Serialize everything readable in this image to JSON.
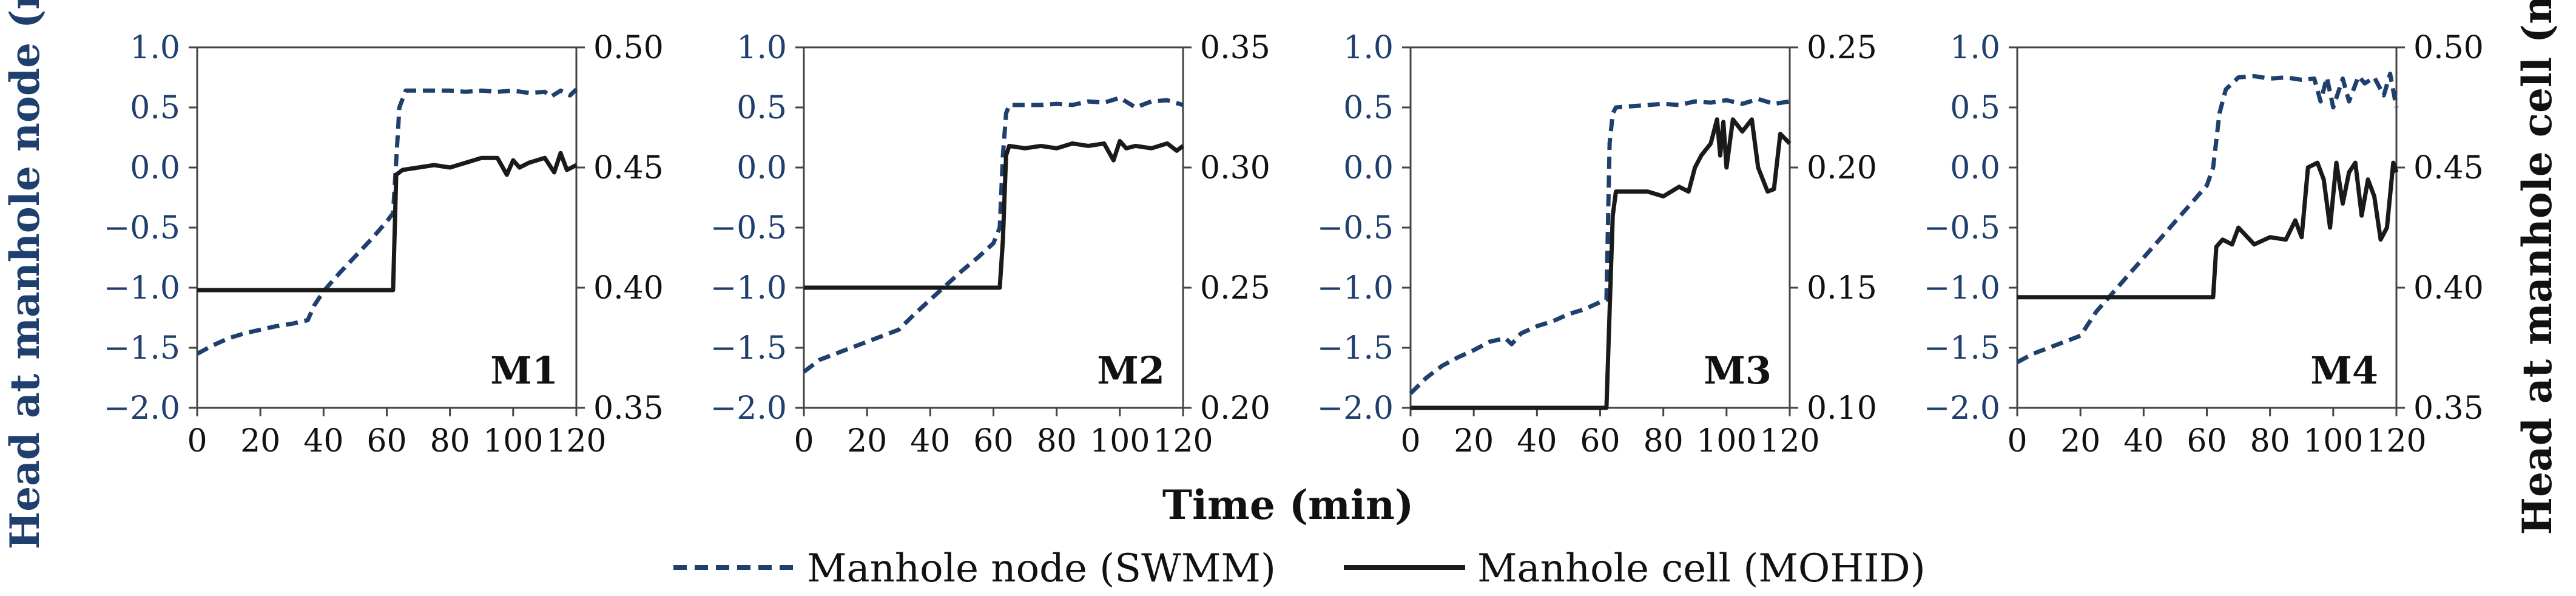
{
  "chart_data": {
    "type": "line",
    "xlabel": "Time (min)",
    "ylabel_left": "Head at manhole node (m)",
    "ylabel_right": "Head at manhole cell (m)",
    "colors": {
      "swmm": "#1f3f6e",
      "mohid": "#1a1a1a",
      "left_axis_text": "#1f3f6e"
    },
    "legend": [
      {
        "name": "Manhole node (SWMM)",
        "style": "dashed",
        "color": "#1f3f6e"
      },
      {
        "name": "Manhole cell (MOHID)",
        "style": "solid",
        "color": "#1a1a1a"
      }
    ],
    "panels": [
      {
        "label": "M1",
        "xlim": [
          0,
          120
        ],
        "xticks": [
          "0",
          "20",
          "40",
          "60",
          "80",
          "100",
          "120"
        ],
        "ylim_left": [
          -2.0,
          1.0
        ],
        "yticks_left": [
          "-2.0",
          "-1.5",
          "-1.0",
          "-0.5",
          "0.0",
          "0.5",
          "1.0"
        ],
        "ylim_right": [
          0.35,
          0.5
        ],
        "yticks_right": [
          "0.35",
          "0.40",
          "0.45",
          "0.50"
        ],
        "series": [
          {
            "name": "Manhole node (SWMM)",
            "axis": "left",
            "x": [
              0,
              5,
              10,
              15,
              20,
              25,
              30,
              35,
              37,
              40,
              45,
              50,
              55,
              60,
              62,
              64,
              66,
              70,
              75,
              80,
              85,
              90,
              95,
              100,
              105,
              110,
              112,
              115,
              118,
              120
            ],
            "y": [
              -1.55,
              -1.48,
              -1.42,
              -1.38,
              -1.35,
              -1.32,
              -1.3,
              -1.27,
              -1.15,
              -1.03,
              -0.88,
              -0.74,
              -0.6,
              -0.45,
              -0.38,
              0.5,
              0.64,
              0.64,
              0.64,
              0.64,
              0.63,
              0.64,
              0.63,
              0.64,
              0.62,
              0.63,
              0.59,
              0.64,
              0.6,
              0.65
            ]
          },
          {
            "name": "Manhole cell (MOHID)",
            "axis": "right",
            "x": [
              0,
              10,
              20,
              30,
              40,
              50,
              60,
              62,
              63,
              65,
              70,
              75,
              80,
              85,
              90,
              95,
              98,
              100,
              102,
              105,
              110,
              113,
              115,
              117,
              120
            ],
            "y": [
              0.399,
              0.399,
              0.399,
              0.399,
              0.399,
              0.399,
              0.399,
              0.399,
              0.447,
              0.449,
              0.45,
              0.451,
              0.45,
              0.452,
              0.454,
              0.454,
              0.447,
              0.453,
              0.45,
              0.452,
              0.454,
              0.448,
              0.456,
              0.449,
              0.451
            ]
          }
        ]
      },
      {
        "label": "M2",
        "xlim": [
          0,
          120
        ],
        "xticks": [
          "0",
          "20",
          "40",
          "60",
          "80",
          "100",
          "120"
        ],
        "ylim_left": [
          -2.0,
          1.0
        ],
        "yticks_left": [
          "-2.0",
          "-1.5",
          "-1.0",
          "-0.5",
          "0.0",
          "0.5",
          "1.0"
        ],
        "ylim_right": [
          0.2,
          0.35
        ],
        "yticks_right": [
          "0.20",
          "0.25",
          "0.30",
          "0.35"
        ],
        "series": [
          {
            "name": "Manhole node (SWMM)",
            "axis": "left",
            "x": [
              0,
              5,
              10,
              15,
              20,
              25,
              30,
              35,
              40,
              45,
              50,
              55,
              60,
              62,
              63,
              64,
              65,
              70,
              75,
              80,
              85,
              90,
              95,
              100,
              105,
              110,
              115,
              120
            ],
            "y": [
              -1.7,
              -1.6,
              -1.55,
              -1.5,
              -1.45,
              -1.4,
              -1.35,
              -1.22,
              -1.1,
              -0.98,
              -0.86,
              -0.75,
              -0.63,
              -0.5,
              0.1,
              0.45,
              0.52,
              0.52,
              0.52,
              0.53,
              0.52,
              0.55,
              0.54,
              0.58,
              0.5,
              0.55,
              0.56,
              0.52
            ]
          },
          {
            "name": "Manhole cell (MOHID)",
            "axis": "right",
            "x": [
              0,
              20,
              40,
              60,
              62,
              63,
              64,
              65,
              70,
              75,
              80,
              85,
              90,
              95,
              98,
              100,
              102,
              105,
              110,
              115,
              118,
              120
            ],
            "y": [
              0.25,
              0.25,
              0.25,
              0.25,
              0.25,
              0.27,
              0.305,
              0.309,
              0.308,
              0.309,
              0.308,
              0.31,
              0.309,
              0.31,
              0.303,
              0.311,
              0.308,
              0.309,
              0.308,
              0.31,
              0.307,
              0.309
            ]
          }
        ]
      },
      {
        "label": "M3",
        "xlim": [
          0,
          120
        ],
        "xticks": [
          "0",
          "20",
          "40",
          "60",
          "80",
          "100",
          "120"
        ],
        "ylim_left": [
          -2.0,
          1.0
        ],
        "yticks_left": [
          "-2.0",
          "-1.5",
          "-1.0",
          "-0.5",
          "0.0",
          "0.5",
          "1.0"
        ],
        "ylim_right": [
          0.1,
          0.25
        ],
        "yticks_right": [
          "0.10",
          "0.15",
          "0.20",
          "0.25"
        ],
        "series": [
          {
            "name": "Manhole node (SWMM)",
            "axis": "left",
            "x": [
              0,
              5,
              10,
              15,
              20,
              25,
              30,
              32,
              35,
              40,
              45,
              50,
              55,
              60,
              62,
              63,
              64,
              65,
              70,
              75,
              80,
              85,
              90,
              95,
              100,
              105,
              110,
              115,
              120
            ],
            "y": [
              -1.88,
              -1.75,
              -1.65,
              -1.58,
              -1.52,
              -1.45,
              -1.42,
              -1.47,
              -1.38,
              -1.32,
              -1.28,
              -1.22,
              -1.18,
              -1.12,
              -1.1,
              0.2,
              0.45,
              0.5,
              0.51,
              0.52,
              0.53,
              0.52,
              0.55,
              0.54,
              0.56,
              0.53,
              0.57,
              0.53,
              0.55
            ]
          },
          {
            "name": "Manhole cell (MOHID)",
            "axis": "right",
            "x": [
              0,
              20,
              40,
              60,
              62,
              63,
              64,
              65,
              70,
              75,
              80,
              85,
              88,
              90,
              92,
              95,
              97,
              98,
              99,
              100,
              102,
              105,
              108,
              110,
              113,
              115,
              117,
              120
            ],
            "y": [
              0.1,
              0.1,
              0.1,
              0.1,
              0.1,
              0.14,
              0.18,
              0.19,
              0.19,
              0.19,
              0.188,
              0.192,
              0.19,
              0.2,
              0.205,
              0.21,
              0.22,
              0.205,
              0.219,
              0.2,
              0.22,
              0.215,
              0.22,
              0.2,
              0.19,
              0.191,
              0.214,
              0.21
            ]
          }
        ]
      },
      {
        "label": "M4",
        "xlim": [
          0,
          120
        ],
        "xticks": [
          "0",
          "20",
          "40",
          "60",
          "80",
          "100",
          "120"
        ],
        "ylim_left": [
          -2.0,
          1.0
        ],
        "yticks_left": [
          "-2.0",
          "-1.5",
          "-1.0",
          "-0.5",
          "0.0",
          "0.5",
          "1.0"
        ],
        "ylim_right": [
          0.35,
          0.5
        ],
        "yticks_right": [
          "0.35",
          "0.40",
          "0.45",
          "0.50"
        ],
        "series": [
          {
            "name": "Manhole node (SWMM)",
            "axis": "left",
            "x": [
              0,
              5,
              10,
              15,
              20,
              25,
              30,
              35,
              40,
              45,
              50,
              55,
              60,
              62,
              64,
              66,
              70,
              75,
              80,
              85,
              90,
              94,
              96,
              98,
              100,
              103,
              105,
              108,
              110,
              113,
              116,
              118,
              120
            ],
            "y": [
              -1.62,
              -1.55,
              -1.5,
              -1.45,
              -1.4,
              -1.2,
              -1.05,
              -0.9,
              -0.75,
              -0.6,
              -0.45,
              -0.3,
              -0.15,
              0.0,
              0.45,
              0.65,
              0.75,
              0.76,
              0.74,
              0.75,
              0.73,
              0.74,
              0.55,
              0.75,
              0.5,
              0.74,
              0.55,
              0.76,
              0.7,
              0.75,
              0.6,
              0.78,
              0.5
            ]
          },
          {
            "name": "Manhole cell (MOHID)",
            "axis": "right",
            "x": [
              0,
              20,
              40,
              60,
              62,
              63,
              65,
              68,
              70,
              75,
              80,
              85,
              88,
              90,
              92,
              95,
              97,
              99,
              101,
              103,
              105,
              107,
              109,
              111,
              113,
              115,
              117,
              119,
              120
            ],
            "y": [
              0.396,
              0.396,
              0.396,
              0.396,
              0.396,
              0.417,
              0.42,
              0.418,
              0.425,
              0.418,
              0.421,
              0.42,
              0.428,
              0.421,
              0.45,
              0.452,
              0.445,
              0.425,
              0.452,
              0.435,
              0.448,
              0.452,
              0.43,
              0.445,
              0.438,
              0.42,
              0.425,
              0.452,
              0.448
            ]
          }
        ]
      }
    ]
  }
}
